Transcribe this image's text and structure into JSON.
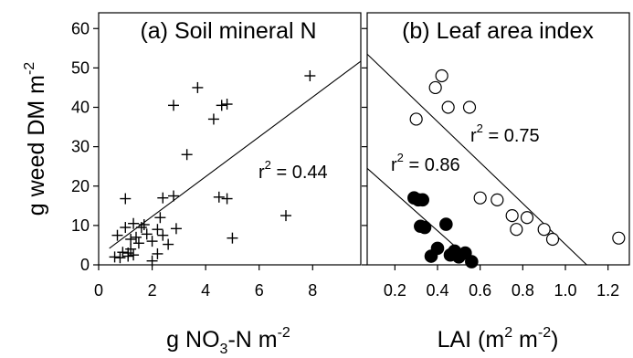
{
  "chart_data": [
    {
      "panel": "a",
      "type": "scatter",
      "title": "(a) Soil mineral N",
      "xlabel_main": "g NO",
      "xlabel_sub": "3",
      "xlabel_tail": "-N m",
      "xlabel_sup": "-2",
      "ylabel_main": "g weed DM m",
      "ylabel_sup": "-2",
      "xlim": [
        0,
        9.8
      ],
      "ylim": [
        0,
        64
      ],
      "x_ticks": [
        0,
        2,
        4,
        6,
        8
      ],
      "y_ticks": [
        0,
        10,
        20,
        30,
        40,
        50,
        60
      ],
      "marker": "plus",
      "points": [
        {
          "x": 0.6,
          "y": 2.0
        },
        {
          "x": 0.7,
          "y": 7.5
        },
        {
          "x": 0.8,
          "y": 1.8
        },
        {
          "x": 0.9,
          "y": 3.2
        },
        {
          "x": 1.0,
          "y": 16.8
        },
        {
          "x": 1.0,
          "y": 9.5
        },
        {
          "x": 1.1,
          "y": 3.0
        },
        {
          "x": 1.1,
          "y": 2.2
        },
        {
          "x": 1.2,
          "y": 6.5
        },
        {
          "x": 1.2,
          "y": 4.0
        },
        {
          "x": 1.3,
          "y": 2.5
        },
        {
          "x": 1.3,
          "y": 10.5
        },
        {
          "x": 1.4,
          "y": 7.0
        },
        {
          "x": 1.5,
          "y": 5.5
        },
        {
          "x": 1.6,
          "y": 9.5
        },
        {
          "x": 1.7,
          "y": 10.2
        },
        {
          "x": 1.8,
          "y": 7.8
        },
        {
          "x": 2.0,
          "y": 6.0
        },
        {
          "x": 2.0,
          "y": 1.0
        },
        {
          "x": 2.2,
          "y": 9.0
        },
        {
          "x": 2.2,
          "y": 2.8
        },
        {
          "x": 2.3,
          "y": 12.0
        },
        {
          "x": 2.4,
          "y": 17.0
        },
        {
          "x": 2.4,
          "y": 7.5
        },
        {
          "x": 2.6,
          "y": 5.2
        },
        {
          "x": 2.8,
          "y": 40.5
        },
        {
          "x": 2.8,
          "y": 17.5
        },
        {
          "x": 2.9,
          "y": 9.2
        },
        {
          "x": 3.3,
          "y": 28.0
        },
        {
          "x": 3.7,
          "y": 45.0
        },
        {
          "x": 4.3,
          "y": 37.0
        },
        {
          "x": 4.5,
          "y": 17.2
        },
        {
          "x": 4.6,
          "y": 40.5
        },
        {
          "x": 4.8,
          "y": 16.8
        },
        {
          "x": 4.8,
          "y": 40.8
        },
        {
          "x": 5.0,
          "y": 6.8
        },
        {
          "x": 7.0,
          "y": 12.5
        },
        {
          "x": 7.9,
          "y": 48.0
        }
      ],
      "fit_line": {
        "x": [
          0.4,
          9.8
        ],
        "y": [
          4.2,
          51.7
        ]
      },
      "r2_label": "r",
      "r2_sup": "2",
      "r2_value": " = 0.44",
      "grid": false
    },
    {
      "panel": "b",
      "type": "scatter",
      "title": "(b) Leaf area index",
      "xlabel_main": "LAI (m",
      "xlabel_sup1": "2",
      "xlabel_mid": " m",
      "xlabel_sup2": "-2",
      "xlabel_tail": ")",
      "xlim": [
        0.07,
        1.3
      ],
      "ylim": [
        0,
        64
      ],
      "x_ticks": [
        0.2,
        0.4,
        0.6,
        0.8,
        1.0,
        1.2
      ],
      "x_tick_labels": [
        "0.2",
        "0.4",
        "0.6",
        "0.8",
        "1.0",
        "1.2"
      ],
      "y_ticks": [
        0,
        10,
        20,
        30,
        40,
        50,
        60
      ],
      "series": [
        {
          "marker": "open-circle",
          "points": [
            {
              "x": 0.3,
              "y": 37.0
            },
            {
              "x": 0.39,
              "y": 45.0
            },
            {
              "x": 0.42,
              "y": 48.0
            },
            {
              "x": 0.45,
              "y": 40.0
            },
            {
              "x": 0.55,
              "y": 40.0
            },
            {
              "x": 0.6,
              "y": 17.0
            },
            {
              "x": 0.68,
              "y": 16.5
            },
            {
              "x": 0.75,
              "y": 12.5
            },
            {
              "x": 0.77,
              "y": 9.0
            },
            {
              "x": 0.82,
              "y": 12.0
            },
            {
              "x": 0.9,
              "y": 9.0
            },
            {
              "x": 0.94,
              "y": 6.5
            },
            {
              "x": 1.25,
              "y": 6.8
            }
          ],
          "fit_line": {
            "x": [
              0.07,
              1.1
            ],
            "y": [
              53.5,
              0.0
            ]
          },
          "r2_label": "r",
          "r2_sup": "2",
          "r2_value": " = 0.75"
        },
        {
          "marker": "filled-circle",
          "points": [
            {
              "x": 0.29,
              "y": 17.0
            },
            {
              "x": 0.31,
              "y": 16.5
            },
            {
              "x": 0.33,
              "y": 16.5
            },
            {
              "x": 0.32,
              "y": 9.8
            },
            {
              "x": 0.34,
              "y": 9.5
            },
            {
              "x": 0.37,
              "y": 2.2
            },
            {
              "x": 0.4,
              "y": 4.2
            },
            {
              "x": 0.44,
              "y": 10.3
            },
            {
              "x": 0.46,
              "y": 2.5
            },
            {
              "x": 0.48,
              "y": 3.5
            },
            {
              "x": 0.5,
              "y": 2.0
            },
            {
              "x": 0.53,
              "y": 3.0
            },
            {
              "x": 0.56,
              "y": 0.8
            }
          ],
          "fit_line": {
            "x": [
              0.07,
              0.58
            ],
            "y": [
              24.5,
              0.0
            ]
          },
          "r2_label": "r",
          "r2_sup": "2",
          "r2_value": " = 0.86"
        }
      ],
      "grid": false
    }
  ]
}
